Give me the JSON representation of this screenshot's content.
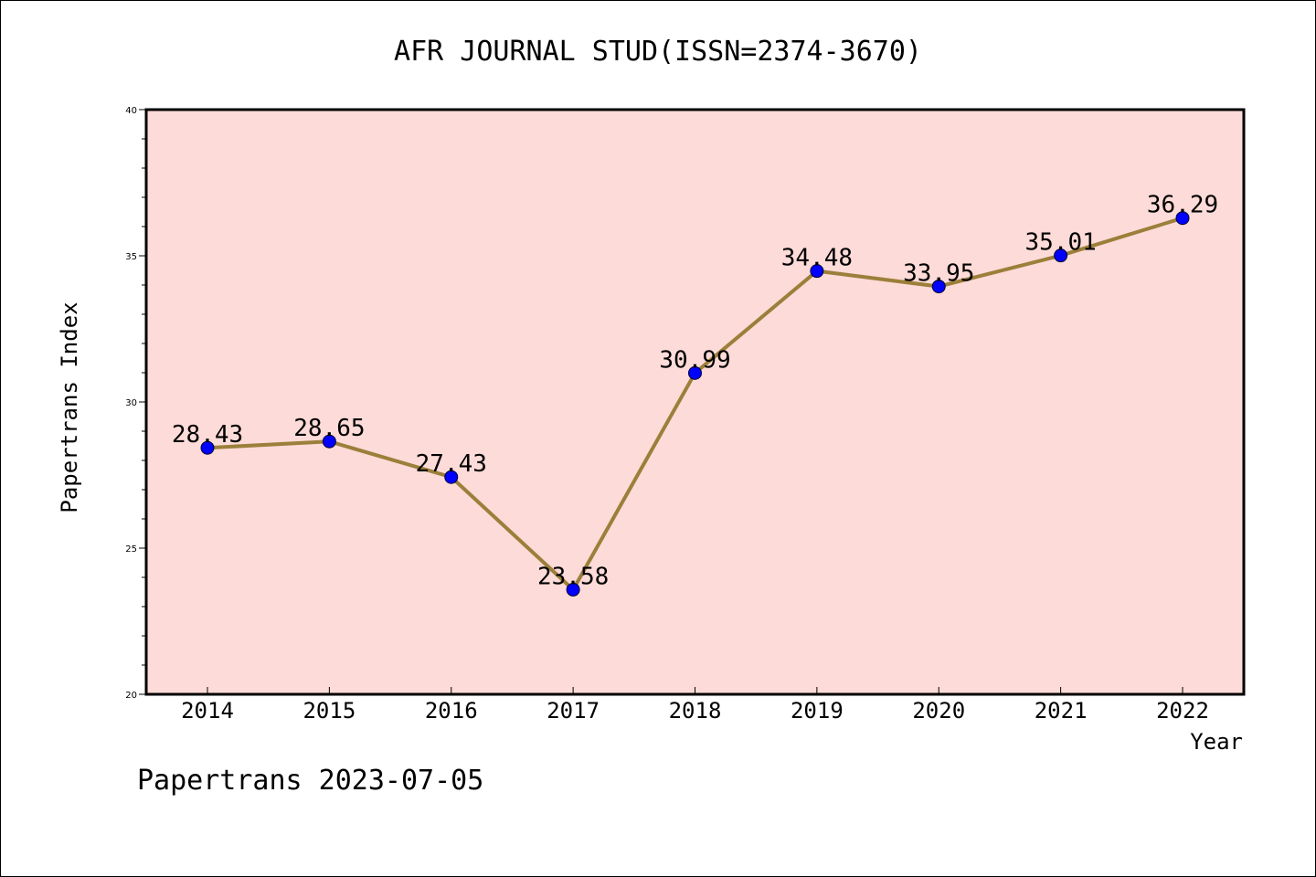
{
  "chart_data": {
    "type": "line",
    "title": "AFR JOURNAL STUD(ISSN=2374-3670)",
    "xlabel": "Year",
    "ylabel": "Papertrans Index",
    "categories": [
      "2014",
      "2015",
      "2016",
      "2017",
      "2018",
      "2019",
      "2020",
      "2021",
      "2022"
    ],
    "series": [
      {
        "values": [
          28.43,
          28.65,
          27.43,
          23.58,
          30.99,
          34.48,
          33.95,
          35.01,
          36.29
        ],
        "labels": [
          "28.43",
          "28.65",
          "27.43",
          "23.58",
          "30.99",
          "34.48",
          "33.95",
          "35.01",
          "36.29"
        ]
      }
    ],
    "yticks": [
      "20",
      "25",
      "30",
      "35",
      "40"
    ],
    "ylim": [
      20,
      40
    ],
    "grid": false,
    "colors": {
      "plot_background": "#fddbd8",
      "line": "#9b7f3a",
      "marker": "#0000ff"
    }
  },
  "footer": "Papertrans 2023-07-05"
}
